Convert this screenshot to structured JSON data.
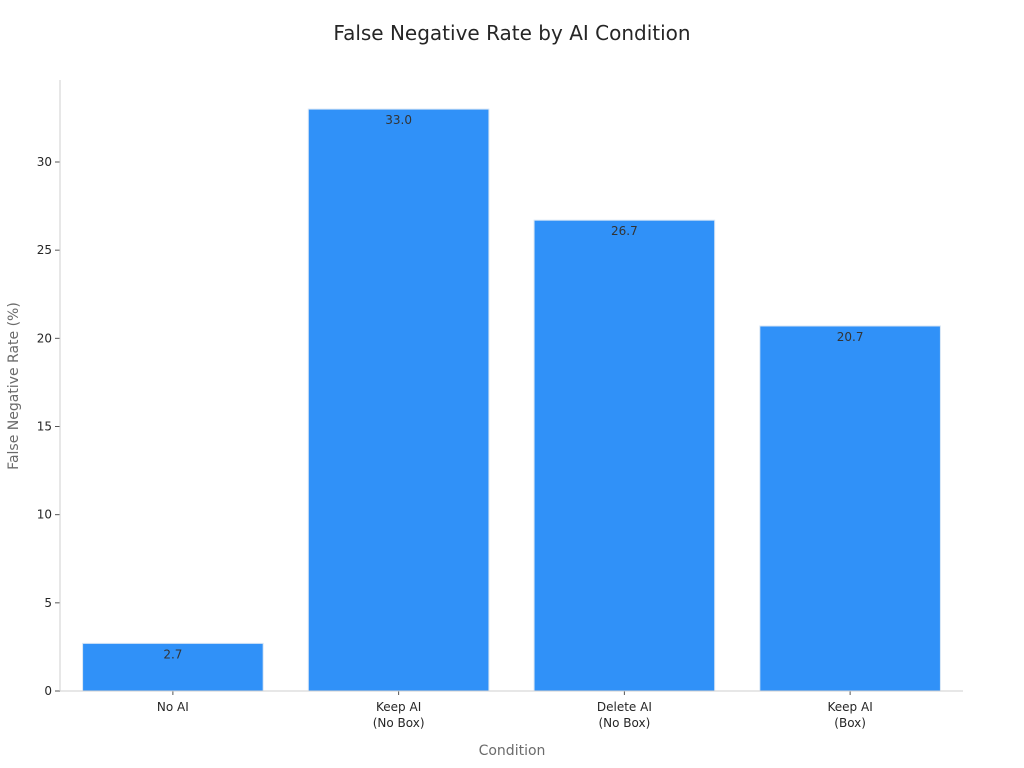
{
  "chart_data": {
    "type": "bar",
    "title": "False Negative Rate by AI Condition",
    "xlabel": "Condition",
    "ylabel": "False Negative Rate (%)",
    "categories": [
      [
        "No AI"
      ],
      [
        "Keep AI",
        "(No Box)"
      ],
      [
        "Delete AI",
        "(No Box)"
      ],
      [
        "Keep AI",
        "(Box)"
      ]
    ],
    "values": [
      2.7,
      33.0,
      26.7,
      20.7
    ],
    "value_labels": [
      "2.7",
      "33.0",
      "26.7",
      "20.7"
    ],
    "ylim": [
      0,
      34.65
    ],
    "yticks": [
      0,
      5,
      10,
      15,
      20,
      25,
      30
    ],
    "grid": false,
    "bar_color": "#3091f8",
    "bar_edge_color": "#d8e6f5"
  }
}
